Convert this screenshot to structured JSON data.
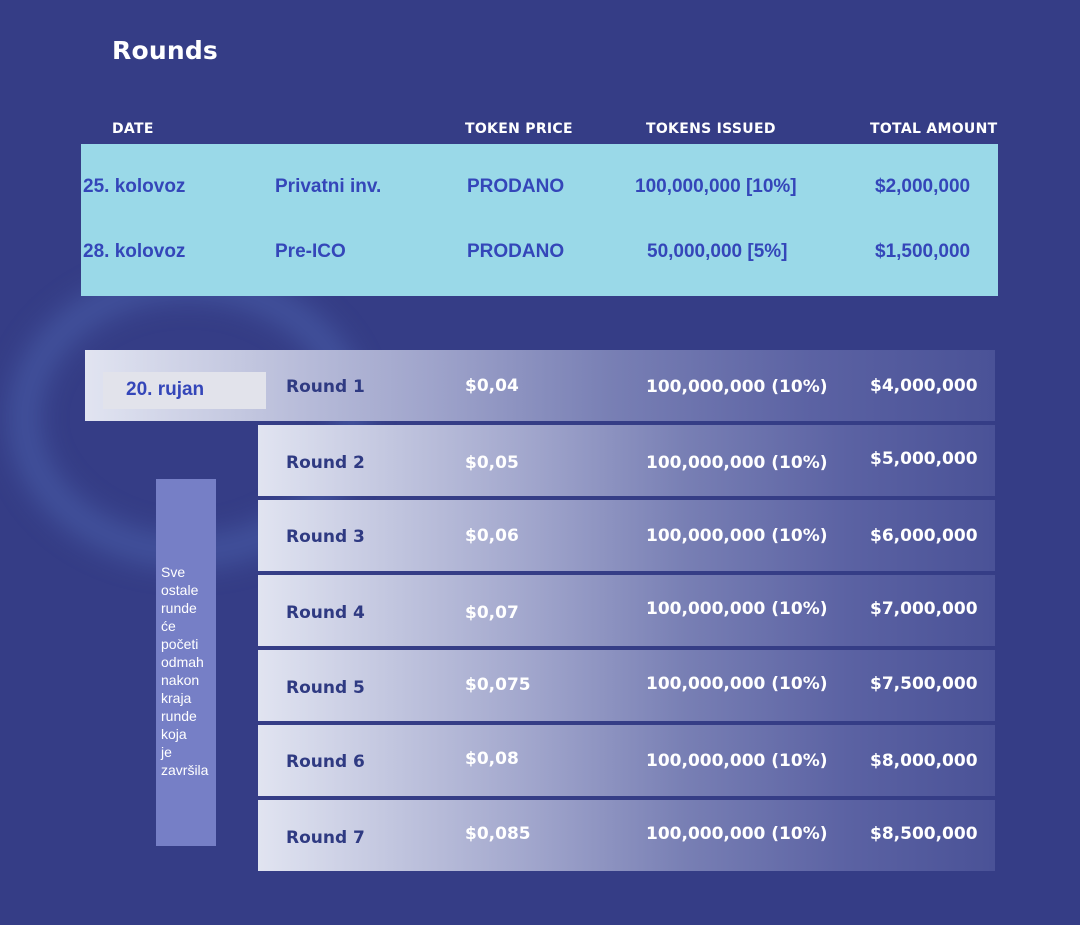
{
  "title": "Rounds",
  "headers": {
    "date": "DATE",
    "token_price": "TOKEN PRICE",
    "tokens_issued": "TOKENS ISSUED",
    "total_amount": "TOTAL AMOUNT"
  },
  "presale": [
    {
      "date": "25. kolovoz",
      "name": "Privatni inv.",
      "price": "PRODANO",
      "tokens": "100,000,000 [10%]",
      "total": "$2,000,000"
    },
    {
      "date": "28. kolovoz",
      "name": "Pre-ICO",
      "price": "PRODANO",
      "tokens": "50,000,000 [5%]",
      "total": "$1,500,000"
    }
  ],
  "start_date": "20. rujan",
  "rounds": [
    {
      "name": "Round 1",
      "price": "$0,04",
      "tokens": "100,000,000 (10%)",
      "total": "$4,000,000"
    },
    {
      "name": "Round 2",
      "price": "$0,05",
      "tokens": "100,000,000 (10%)",
      "total": "$5,000,000"
    },
    {
      "name": "Round 3",
      "price": "$0,06",
      "tokens": "100,000,000 (10%)",
      "total": "$6,000,000"
    },
    {
      "name": "Round 4",
      "price": "$0,07",
      "tokens": "100,000,000 (10%)",
      "total": "$7,000,000"
    },
    {
      "name": "Round 5",
      "price": "$0,075",
      "tokens": "100,000,000 (10%)",
      "total": "$7,500,000"
    },
    {
      "name": "Round 6",
      "price": "$0,08",
      "tokens": "100,000,000 (10%)",
      "total": "$8,000,000"
    },
    {
      "name": "Round 7",
      "price": "$0,085",
      "tokens": "100,000,000 (10%)",
      "total": "$8,500,000"
    }
  ],
  "note": "Sve ostale runde će početi odmah nakon kraja runde koja je završila",
  "colors": {
    "background": "#353d86",
    "presale_band": "#9ad9e8",
    "presale_text": "#3446b9",
    "note_box": "#767fc6"
  }
}
